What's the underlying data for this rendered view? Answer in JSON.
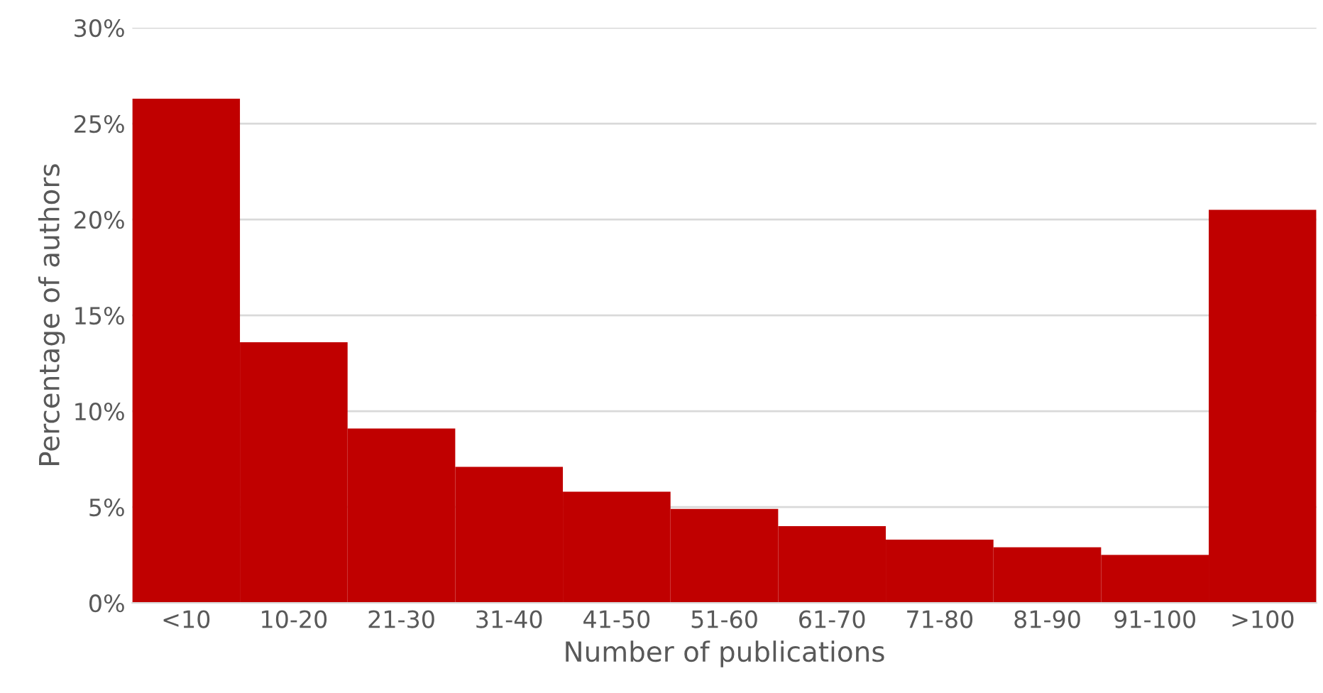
{
  "chart_data": {
    "type": "bar",
    "xlabel": "Number of publications",
    "ylabel": "Percentage of authors",
    "categories": [
      "<10",
      "10-20",
      "21-30",
      "31-40",
      "41-50",
      "51-60",
      "61-70",
      "71-80",
      "81-90",
      "91-100",
      ">100"
    ],
    "values": [
      26.3,
      13.6,
      9.1,
      7.1,
      5.8,
      4.9,
      4.0,
      3.3,
      2.9,
      2.5,
      20.5
    ],
    "color": "#c00000",
    "ylim": [
      0,
      30
    ],
    "yticks": [
      {
        "value": 0,
        "label": "0%"
      },
      {
        "value": 5,
        "label": "5%"
      },
      {
        "value": 10,
        "label": "10%"
      },
      {
        "value": 15,
        "label": "15%"
      },
      {
        "value": 20,
        "label": "20%"
      },
      {
        "value": 25,
        "label": "25%"
      },
      {
        "value": 30,
        "label": "30%"
      }
    ],
    "grid": "y"
  }
}
